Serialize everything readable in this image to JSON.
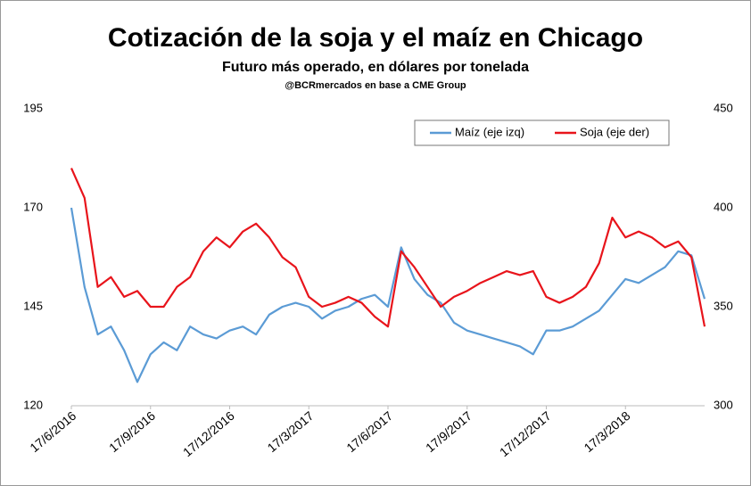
{
  "chart_data": {
    "type": "line",
    "title": "Cotización de la soja y el maíz en Chicago",
    "subtitle": "Futuro más operado, en dólares por tonelada",
    "source": "@BCRmercados en base a CME Group",
    "categories": [
      "17/6/2016",
      null,
      null,
      null,
      null,
      null,
      "17/9/2016",
      null,
      null,
      null,
      null,
      null,
      "17/12/2016",
      null,
      null,
      null,
      null,
      null,
      "17/3/2017",
      null,
      null,
      null,
      null,
      null,
      "17/6/2017",
      null,
      null,
      null,
      null,
      null,
      "17/9/2017",
      null,
      null,
      null,
      null,
      null,
      "17/12/2017",
      null,
      null,
      null,
      null,
      null,
      "17/3/2018",
      null,
      null,
      null,
      null,
      null,
      null
    ],
    "series": [
      {
        "name": "Maíz (eje izq)",
        "color": "#5b9bd5",
        "axis": "y",
        "values": [
          170,
          150,
          138,
          140,
          134,
          126,
          133,
          136,
          134,
          140,
          138,
          137,
          139,
          140,
          138,
          143,
          145,
          146,
          145,
          142,
          144,
          145,
          147,
          148,
          145,
          160,
          152,
          148,
          146,
          141,
          139,
          138,
          137,
          136,
          135,
          133,
          139,
          139,
          140,
          142,
          144,
          148,
          152,
          151,
          153,
          155,
          159,
          158,
          147
        ]
      },
      {
        "name": "Soja (eje der)",
        "color": "#e8141b",
        "axis": "y2",
        "values": [
          420,
          405,
          360,
          365,
          355,
          358,
          350,
          350,
          360,
          365,
          378,
          385,
          380,
          388,
          392,
          385,
          375,
          370,
          355,
          350,
          352,
          355,
          352,
          345,
          340,
          378,
          370,
          360,
          350,
          355,
          358,
          362,
          365,
          368,
          366,
          368,
          355,
          352,
          355,
          360,
          372,
          395,
          385,
          388,
          385,
          380,
          383,
          375,
          340
        ]
      }
    ],
    "ylim": [
      120,
      195
    ],
    "yticks": [
      120,
      145,
      170,
      195
    ],
    "y2lim": [
      300,
      450
    ],
    "y2ticks": [
      300,
      350,
      400,
      450
    ],
    "legend": "top-right"
  }
}
